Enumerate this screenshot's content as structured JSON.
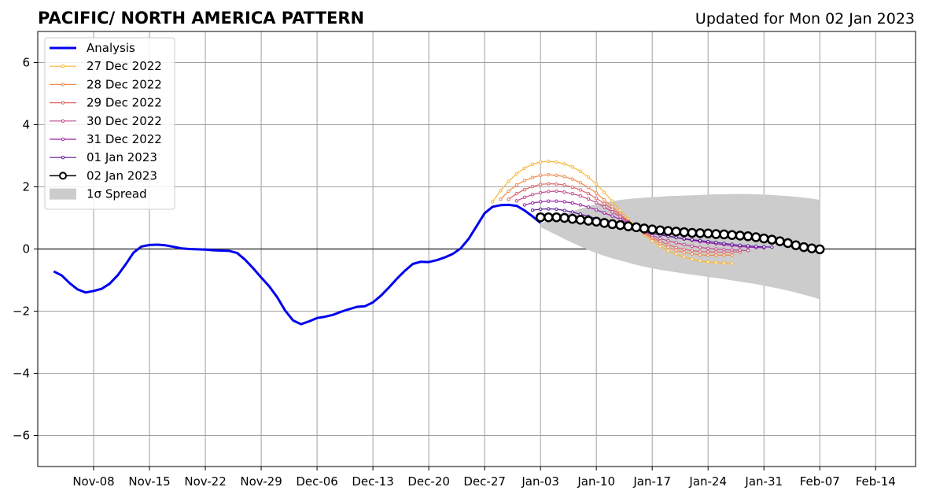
{
  "chart_data": {
    "type": "line",
    "title": "PACIFIC/ NORTH AMERICA PATTERN",
    "subtitle": "Updated for Mon 02 Jan 2023",
    "xlabel": "",
    "ylabel": "",
    "grid": true,
    "legend_position": "top-left",
    "ylim": [
      -7,
      7
    ],
    "yticks": [
      -6,
      -4,
      -2,
      0,
      2,
      4,
      6
    ],
    "ytick_labels": [
      "−6",
      "−4",
      "−2",
      "0",
      "2",
      "4",
      "6"
    ],
    "xlim": [
      "2022-11-01",
      "2023-02-19"
    ],
    "xticks": [
      "2022-11-08",
      "2022-11-15",
      "2022-11-22",
      "2022-11-29",
      "2022-12-06",
      "2022-12-13",
      "2022-12-20",
      "2022-12-27",
      "2023-01-03",
      "2023-01-10",
      "2023-01-17",
      "2023-01-24",
      "2023-01-31",
      "2023-02-07",
      "2023-02-14"
    ],
    "xtick_labels": [
      "Nov-08",
      "Nov-15",
      "Nov-22",
      "Nov-29",
      "Dec-06",
      "Dec-13",
      "Dec-20",
      "Dec-27",
      "Jan-03",
      "Jan-10",
      "Jan-17",
      "Jan-24",
      "Jan-31",
      "Feb-07",
      "Feb-14"
    ],
    "analysis": {
      "name": "Analysis",
      "color": "#0000ee",
      "start_date": "2022-11-03",
      "step_days": 1,
      "values": [
        -0.72,
        -0.85,
        -1.1,
        -1.3,
        -1.4,
        -1.35,
        -1.28,
        -1.12,
        -0.85,
        -0.5,
        -0.12,
        0.08,
        0.13,
        0.14,
        0.12,
        0.07,
        0.02,
        0.0,
        -0.01,
        -0.02,
        -0.04,
        -0.05,
        -0.06,
        -0.13,
        -0.35,
        -0.62,
        -0.92,
        -1.2,
        -1.55,
        -1.98,
        -2.3,
        -2.42,
        -2.33,
        -2.22,
        -2.18,
        -2.12,
        -2.02,
        -1.94,
        -1.86,
        -1.84,
        -1.72,
        -1.5,
        -1.24,
        -0.96,
        -0.7,
        -0.48,
        -0.41,
        -0.42,
        -0.36,
        -0.27,
        -0.16,
        0.02,
        0.33,
        0.74,
        1.15,
        1.36,
        1.41,
        1.42,
        1.39,
        1.24,
        1.05,
        0.84
      ]
    },
    "forecasts": [
      {
        "name": "27 Dec 2022",
        "color": "#f7b731",
        "start_date": "2022-12-28",
        "step_days": 1,
        "values": [
          1.52,
          1.88,
          2.18,
          2.42,
          2.6,
          2.73,
          2.8,
          2.82,
          2.8,
          2.74,
          2.64,
          2.5,
          2.31,
          2.09,
          1.82,
          1.54,
          1.25,
          0.96,
          0.69,
          0.46,
          0.26,
          0.08,
          -0.06,
          -0.17,
          -0.26,
          -0.33,
          -0.38,
          -0.42,
          -0.44,
          -0.45,
          -0.46
        ]
      },
      {
        "name": "28 Dec 2022",
        "color": "#f08a4b",
        "start_date": "2022-12-29",
        "step_days": 1,
        "values": [
          1.6,
          1.86,
          2.06,
          2.2,
          2.3,
          2.37,
          2.39,
          2.37,
          2.33,
          2.25,
          2.13,
          1.98,
          1.8,
          1.58,
          1.36,
          1.13,
          0.9,
          0.68,
          0.5,
          0.34,
          0.19,
          0.06,
          -0.04,
          -0.11,
          -0.16,
          -0.19,
          -0.2,
          -0.2,
          -0.2,
          -0.2
        ]
      },
      {
        "name": "29 Dec 2022",
        "color": "#e06468",
        "start_date": "2022-12-30",
        "step_days": 1,
        "values": [
          1.6,
          1.78,
          1.91,
          2.01,
          2.08,
          2.1,
          2.09,
          2.06,
          1.99,
          1.9,
          1.78,
          1.63,
          1.46,
          1.28,
          1.08,
          0.88,
          0.7,
          0.53,
          0.38,
          0.25,
          0.14,
          0.05,
          -0.01,
          -0.05,
          -0.08,
          -0.09,
          -0.1,
          -0.1,
          -0.1,
          -0.1
        ]
      },
      {
        "name": "30 Dec 2022",
        "color": "#c04a8c",
        "start_date": "2022-12-31",
        "step_days": 1,
        "values": [
          1.55,
          1.66,
          1.75,
          1.81,
          1.85,
          1.86,
          1.83,
          1.78,
          1.71,
          1.61,
          1.49,
          1.35,
          1.19,
          1.03,
          0.87,
          0.71,
          0.56,
          0.44,
          0.34,
          0.26,
          0.2,
          0.14,
          0.09,
          0.05,
          0.02,
          0.0,
          -0.02,
          -0.03,
          -0.04,
          -0.05
        ]
      },
      {
        "name": "31 Dec 2022",
        "color": "#9c23a8",
        "start_date": "2023-01-01",
        "step_days": 1,
        "values": [
          1.42,
          1.48,
          1.52,
          1.54,
          1.54,
          1.52,
          1.48,
          1.42,
          1.35,
          1.26,
          1.16,
          1.06,
          0.95,
          0.84,
          0.74,
          0.64,
          0.55,
          0.48,
          0.42,
          0.37,
          0.32,
          0.28,
          0.24,
          0.2,
          0.17,
          0.14,
          0.11,
          0.08,
          0.06,
          0.05,
          0.04
        ]
      },
      {
        "name": "01 Jan 2023",
        "color": "#5a189a",
        "start_date": "2023-01-02",
        "step_days": 1,
        "values": [
          1.25,
          1.28,
          1.29,
          1.28,
          1.24,
          1.19,
          1.12,
          1.05,
          0.98,
          0.9,
          0.82,
          0.75,
          0.68,
          0.61,
          0.55,
          0.5,
          0.45,
          0.41,
          0.37,
          0.33,
          0.3,
          0.27,
          0.24,
          0.21,
          0.18,
          0.15,
          0.12,
          0.1,
          0.08,
          0.07,
          0.06
        ]
      },
      {
        "name": "02 Jan 2023",
        "color": "#000000",
        "start_date": "2023-01-03",
        "step_days": 1,
        "values": [
          1.02,
          1.02,
          1.02,
          1.0,
          0.97,
          0.94,
          0.91,
          0.88,
          0.84,
          0.8,
          0.77,
          0.73,
          0.7,
          0.66,
          0.63,
          0.6,
          0.58,
          0.56,
          0.54,
          0.52,
          0.51,
          0.5,
          0.48,
          0.47,
          0.45,
          0.43,
          0.41,
          0.38,
          0.34,
          0.3,
          0.25,
          0.19,
          0.12,
          0.06,
          0.02,
          -0.01
        ]
      }
    ],
    "spread": {
      "name": "1σ Spread",
      "color": "#cccccc",
      "start_date": "2023-01-03",
      "step_days": 1,
      "upper": [
        0.82,
        0.92,
        1.02,
        1.12,
        1.21,
        1.3,
        1.37,
        1.44,
        1.5,
        1.54,
        1.58,
        1.61,
        1.63,
        1.65,
        1.67,
        1.68,
        1.7,
        1.71,
        1.72,
        1.73,
        1.74,
        1.75,
        1.76,
        1.76,
        1.77,
        1.77,
        1.77,
        1.76,
        1.75,
        1.74,
        1.72,
        1.7,
        1.68,
        1.65,
        1.62,
        1.58
      ],
      "lower": [
        0.7,
        0.58,
        0.45,
        0.32,
        0.2,
        0.08,
        -0.03,
        -0.13,
        -0.22,
        -0.3,
        -0.37,
        -0.44,
        -0.51,
        -0.57,
        -0.62,
        -0.67,
        -0.71,
        -0.75,
        -0.79,
        -0.83,
        -0.86,
        -0.9,
        -0.93,
        -0.97,
        -1.01,
        -1.05,
        -1.09,
        -1.13,
        -1.18,
        -1.23,
        -1.28,
        -1.34,
        -1.4,
        -1.47,
        -1.54,
        -1.62
      ]
    }
  }
}
